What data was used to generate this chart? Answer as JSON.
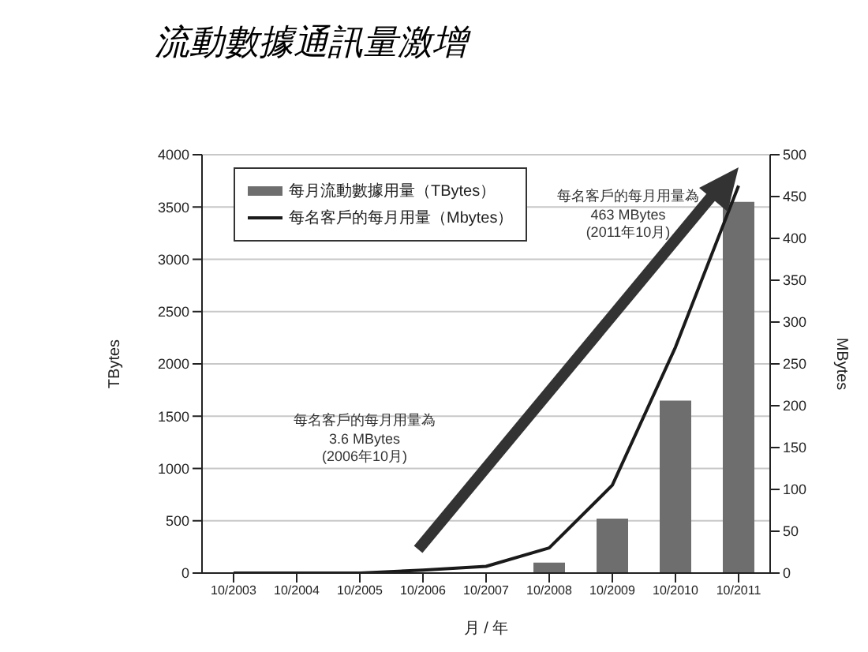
{
  "chart_data": {
    "type": "bar",
    "title": "流動數據通訊量激增",
    "xlabel": "月 / 年",
    "ylabel": "TBytes",
    "y2label": "MBytes",
    "categories": [
      "10/2003",
      "10/2004",
      "10/2005",
      "10/2006",
      "10/2007",
      "10/2008",
      "10/2009",
      "10/2010",
      "10/2011"
    ],
    "series": [
      {
        "name": "每月流動數據用量（TBytes）",
        "color": "#6e6e6e",
        "values": [
          0,
          0,
          0,
          0,
          0,
          100,
          520,
          1650,
          3550
        ]
      },
      {
        "name": "每名客戶的每月用量（Mbytes）",
        "type": "line",
        "axis": "y2",
        "color": "#1a1a1a",
        "values": [
          0,
          0,
          0,
          3.6,
          8,
          30,
          105,
          270,
          463
        ]
      }
    ],
    "ylim": [
      0,
      4000
    ],
    "yticks": [
      0,
      500,
      1000,
      1500,
      2000,
      2500,
      3000,
      3500,
      4000
    ],
    "y2lim": [
      0,
      500
    ],
    "y2ticks": [
      0,
      50,
      100,
      150,
      200,
      250,
      300,
      350,
      400,
      450,
      500
    ],
    "grid": "y",
    "legend": "top left",
    "marker": "none",
    "annotations": [
      "每名客戶的每月用量為\n463 MBytes\n(2011年10月)",
      "每名客戶的每月用量為\n3.6 MBytes\n(2006年10月)"
    ]
  }
}
